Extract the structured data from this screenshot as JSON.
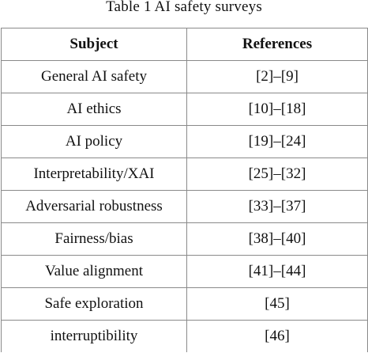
{
  "caption": "Table 1 AI safety surveys",
  "table": {
    "headers": [
      "Subject",
      "References"
    ],
    "rows": [
      [
        "General AI safety",
        "[2]–[9]"
      ],
      [
        "AI ethics",
        "[10]–[18]"
      ],
      [
        "AI policy",
        "[19]–[24]"
      ],
      [
        "Interpretability/XAI",
        "[25]–[32]"
      ],
      [
        "Adversarial robustness",
        "[33]–[37]"
      ],
      [
        "Fairness/bias",
        "[38]–[40]"
      ],
      [
        "Value alignment",
        "[41]–[44]"
      ],
      [
        "Safe exploration",
        "[45]"
      ],
      [
        "interruptibility",
        "[46]"
      ]
    ]
  }
}
